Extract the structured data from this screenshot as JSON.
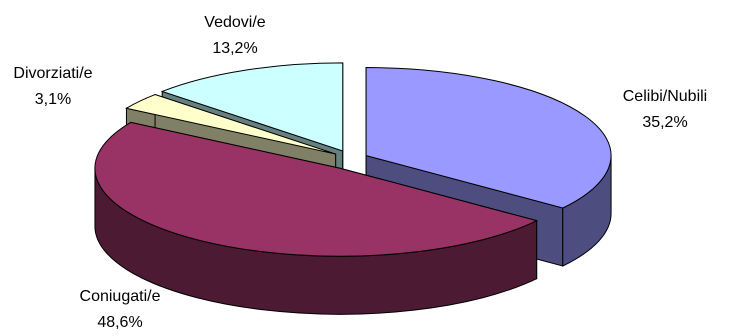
{
  "chart_data": {
    "type": "pie",
    "style": "3d-exploded",
    "slices": [
      {
        "label": "Celibi/Nubili",
        "value": 35.2,
        "value_label": "35,2%",
        "color": "#9999ff",
        "side_color": "#4d4d80"
      },
      {
        "label": "Coniugati/e",
        "value": 48.6,
        "value_label": "48,6%",
        "color": "#993366",
        "side_color": "#4d1a33"
      },
      {
        "label": "Divorziati/e",
        "value": 3.1,
        "value_label": "3,1%",
        "color": "#ffffcc",
        "side_color": "#808066"
      },
      {
        "label": "Vedovi/e",
        "value": 13.2,
        "value_label": "13,2%",
        "color": "#ccffff",
        "side_color": "#668080"
      }
    ]
  }
}
